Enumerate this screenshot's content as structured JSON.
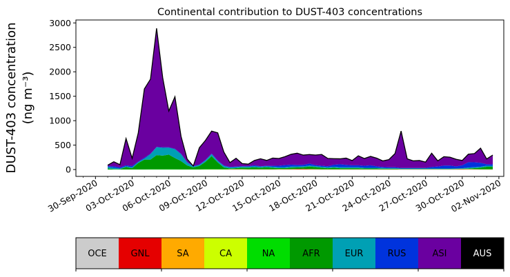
{
  "chart_data": {
    "type": "area",
    "stacked": true,
    "title": "Continental contribution to DUST-403 concentrations",
    "ylabel_line1": "DUST-403 concentration",
    "ylabel_line2": "(ng m⁻³)",
    "xlabel": "",
    "ylim": [
      -140,
      3060
    ],
    "yticks": [
      0,
      500,
      1000,
      1500,
      2000,
      2500,
      3000
    ],
    "ytick_labels": [
      "0",
      "500",
      "1000",
      "1500",
      "2000",
      "2500",
      "3000"
    ],
    "xlim": [
      -1.6,
      33.4
    ],
    "xticks": [
      0,
      3,
      6,
      9,
      12,
      15,
      18,
      21,
      24,
      27,
      30,
      33
    ],
    "xtick_labels": [
      "30-Sep-2020",
      "03-Oct-2020",
      "06-Oct-2020",
      "09-Oct-2020",
      "12-Oct-2020",
      "15-Oct-2020",
      "18-Oct-2020",
      "21-Oct-2020",
      "24-Oct-2020",
      "27-Oct-2020",
      "30-Oct-2020",
      "02-Nov-2020"
    ],
    "x": [
      1.0,
      1.5,
      2.0,
      2.5,
      3.0,
      3.5,
      4.0,
      4.5,
      5.0,
      5.5,
      6.0,
      6.5,
      7.0,
      7.5,
      8.0,
      8.5,
      9.0,
      9.5,
      10.0,
      10.5,
      11.0,
      11.5,
      12.0,
      12.5,
      13.0,
      13.5,
      14.0,
      14.5,
      15.0,
      15.5,
      16.0,
      16.5,
      17.0,
      17.5,
      18.0,
      18.5,
      19.0,
      19.5,
      20.0,
      20.5,
      21.0,
      21.5,
      22.0,
      22.5,
      23.0,
      23.5,
      24.0,
      24.5,
      25.0,
      25.5,
      26.0,
      26.5,
      27.0,
      27.5,
      28.0,
      28.5,
      29.0,
      29.5,
      30.0,
      30.5,
      31.0,
      31.5,
      32.0,
      32.5
    ],
    "series": [
      {
        "name": "OCE",
        "color": "#cccccc",
        "values": [
          0,
          0,
          0,
          0,
          0,
          0,
          0,
          0,
          0,
          0,
          0,
          0,
          0,
          0,
          0,
          0,
          0,
          0,
          0,
          0,
          0,
          0,
          0,
          0,
          0,
          0,
          0,
          0,
          0,
          0,
          0,
          0,
          0,
          0,
          0,
          0,
          0,
          0,
          0,
          0,
          0,
          0,
          0,
          0,
          0,
          0,
          0,
          0,
          0,
          0,
          0,
          0,
          0,
          0,
          0,
          0,
          0,
          0,
          0,
          0,
          0,
          0,
          0,
          0
        ]
      },
      {
        "name": "GNL",
        "color": "#e50000",
        "values": [
          0,
          0,
          0,
          0,
          0,
          0,
          0,
          0,
          0,
          0,
          0,
          0,
          0,
          0,
          0,
          0,
          0,
          0,
          0,
          0,
          3,
          4,
          3,
          3,
          2,
          2,
          2,
          2,
          3,
          4,
          4,
          8,
          10,
          6,
          4,
          3,
          3,
          3,
          3,
          2,
          2,
          2,
          2,
          2,
          2,
          2,
          2,
          2,
          2,
          2,
          2,
          2,
          2,
          2,
          2,
          2,
          2,
          4,
          6,
          5,
          4,
          3,
          3,
          3
        ]
      },
      {
        "name": "SA",
        "color": "#ffaa00",
        "values": [
          0,
          0,
          0,
          0,
          0,
          0,
          0,
          0,
          0,
          0,
          0,
          0,
          0,
          0,
          0,
          0,
          0,
          0,
          0,
          0,
          2,
          2,
          2,
          1,
          1,
          1,
          1,
          1,
          2,
          2,
          2,
          2,
          2,
          2,
          2,
          1,
          1,
          1,
          1,
          1,
          1,
          1,
          1,
          1,
          1,
          1,
          1,
          1,
          1,
          1,
          1,
          1,
          1,
          1,
          1,
          1,
          1,
          1,
          2,
          2,
          1,
          1,
          1,
          1
        ]
      },
      {
        "name": "CA",
        "color": "#ccff00",
        "values": [
          0,
          0,
          0,
          0,
          0,
          0,
          0,
          0,
          0,
          0,
          0,
          0,
          0,
          0,
          0,
          0,
          2,
          2,
          2,
          1,
          1,
          1,
          1,
          1,
          1,
          1,
          1,
          1,
          1,
          1,
          1,
          1,
          1,
          1,
          1,
          1,
          1,
          1,
          1,
          1,
          1,
          1,
          1,
          1,
          1,
          1,
          1,
          1,
          1,
          1,
          1,
          1,
          1,
          1,
          1,
          1,
          1,
          1,
          1,
          1,
          1,
          1,
          1,
          1
        ]
      },
      {
        "name": "NA",
        "color": "#00dd00",
        "values": [
          2,
          2,
          2,
          2,
          2,
          3,
          3,
          4,
          5,
          5,
          6,
          5,
          3,
          3,
          3,
          3,
          5,
          4,
          3,
          3,
          3,
          3,
          3,
          3,
          3,
          3,
          3,
          3,
          3,
          3,
          3,
          3,
          3,
          3,
          3,
          3,
          3,
          3,
          3,
          3,
          3,
          3,
          3,
          3,
          3,
          3,
          3,
          3,
          3,
          3,
          3,
          3,
          3,
          3,
          3,
          3,
          3,
          3,
          3,
          3,
          3,
          3,
          3,
          3
        ]
      },
      {
        "name": "AFR",
        "color": "#009900",
        "values": [
          20,
          10,
          6,
          50,
          25,
          130,
          200,
          200,
          290,
          280,
          300,
          230,
          170,
          80,
          40,
          70,
          150,
          270,
          140,
          40,
          14,
          20,
          30,
          30,
          40,
          30,
          40,
          30,
          20,
          20,
          30,
          30,
          30,
          50,
          40,
          30,
          20,
          30,
          20,
          20,
          20,
          20,
          15,
          15,
          15,
          10,
          10,
          10,
          5,
          5,
          5,
          5,
          5,
          5,
          5,
          5,
          5,
          5,
          5,
          10,
          20,
          30,
          50,
          50
        ]
      },
      {
        "name": "EUR",
        "color": "#00a0b4",
        "values": [
          30,
          25,
          15,
          15,
          20,
          20,
          20,
          110,
          160,
          160,
          140,
          180,
          140,
          60,
          20,
          20,
          30,
          40,
          30,
          30,
          20,
          20,
          20,
          20,
          20,
          20,
          20,
          20,
          20,
          20,
          20,
          20,
          20,
          20,
          20,
          20,
          20,
          20,
          20,
          20,
          20,
          20,
          15,
          15,
          15,
          15,
          10,
          10,
          10,
          10,
          10,
          10,
          10,
          10,
          10,
          10,
          10,
          10,
          10,
          20,
          20,
          20,
          20,
          20
        ]
      },
      {
        "name": "RUS",
        "color": "#0033dd",
        "values": [
          18,
          30,
          20,
          20,
          25,
          10,
          20,
          10,
          10,
          10,
          10,
          10,
          10,
          10,
          8,
          10,
          10,
          10,
          10,
          10,
          10,
          10,
          10,
          10,
          20,
          10,
          10,
          20,
          30,
          40,
          40,
          30,
          30,
          40,
          20,
          20,
          20,
          40,
          60,
          50,
          40,
          40,
          40,
          50,
          30,
          20,
          20,
          20,
          10,
          10,
          10,
          10,
          10,
          30,
          40,
          60,
          60,
          40,
          60,
          110,
          100,
          80,
          30,
          30
        ]
      },
      {
        "name": "ASI",
        "color": "#6a00a0",
        "values": [
          20,
          93,
          57,
          549,
          158,
          587,
          1407,
          1526,
          2425,
          1425,
          741,
          1065,
          356,
          62,
          1,
          344,
          401,
          461,
          566,
          275,
          90,
          170,
          54,
          43,
          99,
          154,
          110,
          158,
          148,
          173,
          212,
          241,
          200,
          185,
          207,
          231,
          160,
          125,
          112,
          137,
          97,
          194,
          149,
          182,
          167,
          125,
          157,
          280,
          756,
          187,
          146,
          153,
          120,
          283,
          116,
          181,
          171,
          147,
          99,
          163,
          178,
          300,
          109,
          189
        ]
      },
      {
        "name": "AUS",
        "color": "#000000",
        "values": [
          0,
          0,
          0,
          0,
          0,
          0,
          0,
          0,
          0,
          0,
          0,
          0,
          0,
          0,
          0,
          0,
          0,
          0,
          0,
          0,
          0,
          0,
          0,
          0,
          0,
          0,
          0,
          0,
          0,
          0,
          0,
          0,
          0,
          0,
          0,
          0,
          0,
          0,
          0,
          0,
          0,
          0,
          0,
          0,
          0,
          0,
          0,
          0,
          0,
          0,
          0,
          0,
          0,
          0,
          0,
          0,
          0,
          0,
          0,
          0,
          0,
          0,
          0,
          0
        ]
      }
    ],
    "legend": [
      {
        "label": "OCE",
        "color": "#cccccc",
        "text_color": "#000000"
      },
      {
        "label": "GNL",
        "color": "#e50000",
        "text_color": "#000000"
      },
      {
        "label": "SA",
        "color": "#ffaa00",
        "text_color": "#000000"
      },
      {
        "label": "CA",
        "color": "#ccff00",
        "text_color": "#000000"
      },
      {
        "label": "NA",
        "color": "#00dd00",
        "text_color": "#000000"
      },
      {
        "label": "AFR",
        "color": "#009900",
        "text_color": "#000000"
      },
      {
        "label": "EUR",
        "color": "#00a0b4",
        "text_color": "#000000"
      },
      {
        "label": "RUS",
        "color": "#0033dd",
        "text_color": "#000000"
      },
      {
        "label": "ASI",
        "color": "#6a00a0",
        "text_color": "#000000"
      },
      {
        "label": "AUS",
        "color": "#000000",
        "text_color": "#ffffff"
      }
    ],
    "legend_placement": "bottom",
    "grid": false
  }
}
